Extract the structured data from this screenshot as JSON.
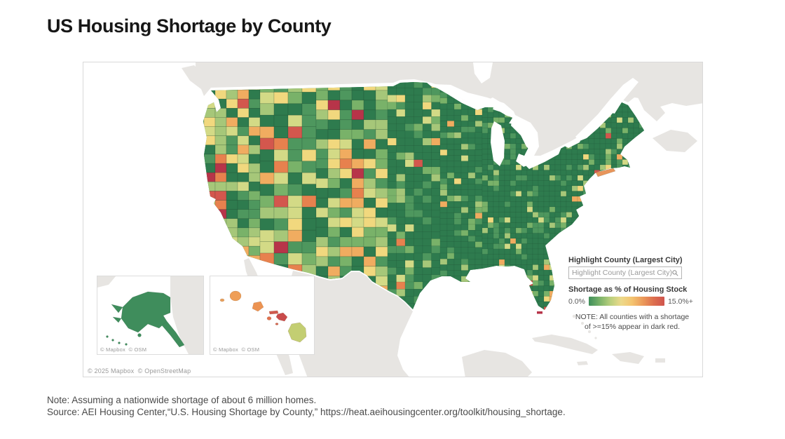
{
  "title": "US Housing Shortage by County",
  "map": {
    "type": "choropleth",
    "attribution": "© 2025 Mapbox  © OpenStreetMap",
    "insets": {
      "alaska_attribution": "© Mapbox  © OSM",
      "hawaii_attribution": "© Mapbox  © OSM"
    },
    "legend": {
      "highlight_label": "Highlight County (Largest City)",
      "search_placeholder": "Highlight County (Largest City)",
      "scale_label": "Shortage as % of Housing Stock",
      "scale_min": "0.0%",
      "scale_max": "15.0%+",
      "note_line1": "NOTE: All counties with a shortage",
      "note_line2": "of >=15% appear in dark red."
    },
    "colors": {
      "ocean": "#ffffff",
      "foreign_land": "#e7e5e2",
      "us_base_green": "#2e7b4e",
      "palette": [
        "#2e7b4e",
        "#4e975e",
        "#79b269",
        "#a6c779",
        "#d3da86",
        "#f1d87e",
        "#f0ac60",
        "#e7814e",
        "#d3574d",
        "#b73449"
      ],
      "scale": [
        "#3f8f5b",
        "#79b269",
        "#b9cf7d",
        "#ecd98a",
        "#f4c470",
        "#eb9a5a",
        "#dd6f4f",
        "#cf544d"
      ]
    }
  },
  "footnotes": {
    "note": "Note: Assuming a nationwide shortage of about 6 million homes.",
    "source": "Source: AEI Housing Center,“U.S. Housing Shortage by County,” https://heat.aeihousingcenter.org/toolkit/housing_shortage."
  }
}
